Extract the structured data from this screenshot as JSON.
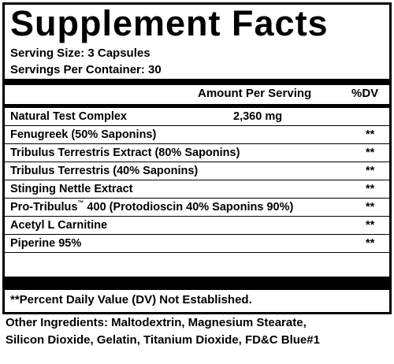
{
  "title": "Supplement Facts",
  "serving_size": "Serving Size: 3 Capsules",
  "servings_per_container": "Servings Per Container: 30",
  "header": {
    "amount": "Amount Per Serving",
    "dv": "%DV"
  },
  "rows": [
    {
      "name": "Natural Test Complex",
      "amount": "2,360 mg",
      "dv": ""
    },
    {
      "name": "Fenugreek (50% Saponins)",
      "amount": "",
      "dv": "**"
    },
    {
      "name": "Tribulus Terrestris Extract (80% Saponins)",
      "amount": "",
      "dv": "**"
    },
    {
      "name": "Tribulus Terrestris (40% Saponins)",
      "amount": "",
      "dv": "**"
    },
    {
      "name": "Stinging Nettle Extract",
      "amount": "",
      "dv": "**"
    },
    {
      "name_pre": "Pro-Tribulus",
      "name_tm": "™",
      "name_post": " 400 (Protodioscin 40% Saponins 90%)",
      "amount": "",
      "dv": "**"
    },
    {
      "name": "Acetyl L Carnitine",
      "amount": "",
      "dv": "**"
    },
    {
      "name": "Piperine 95%",
      "amount": "",
      "dv": "**"
    }
  ],
  "footnote": "**Percent Daily Value (DV) Not Established.",
  "other_ingredients": {
    "line1": "Other Ingredients: Maltodextrin, Magnesium Stearate,",
    "line2": "Silicon Dioxide, Gelatin, Titanium Dioxide, FD&C Blue#1"
  }
}
